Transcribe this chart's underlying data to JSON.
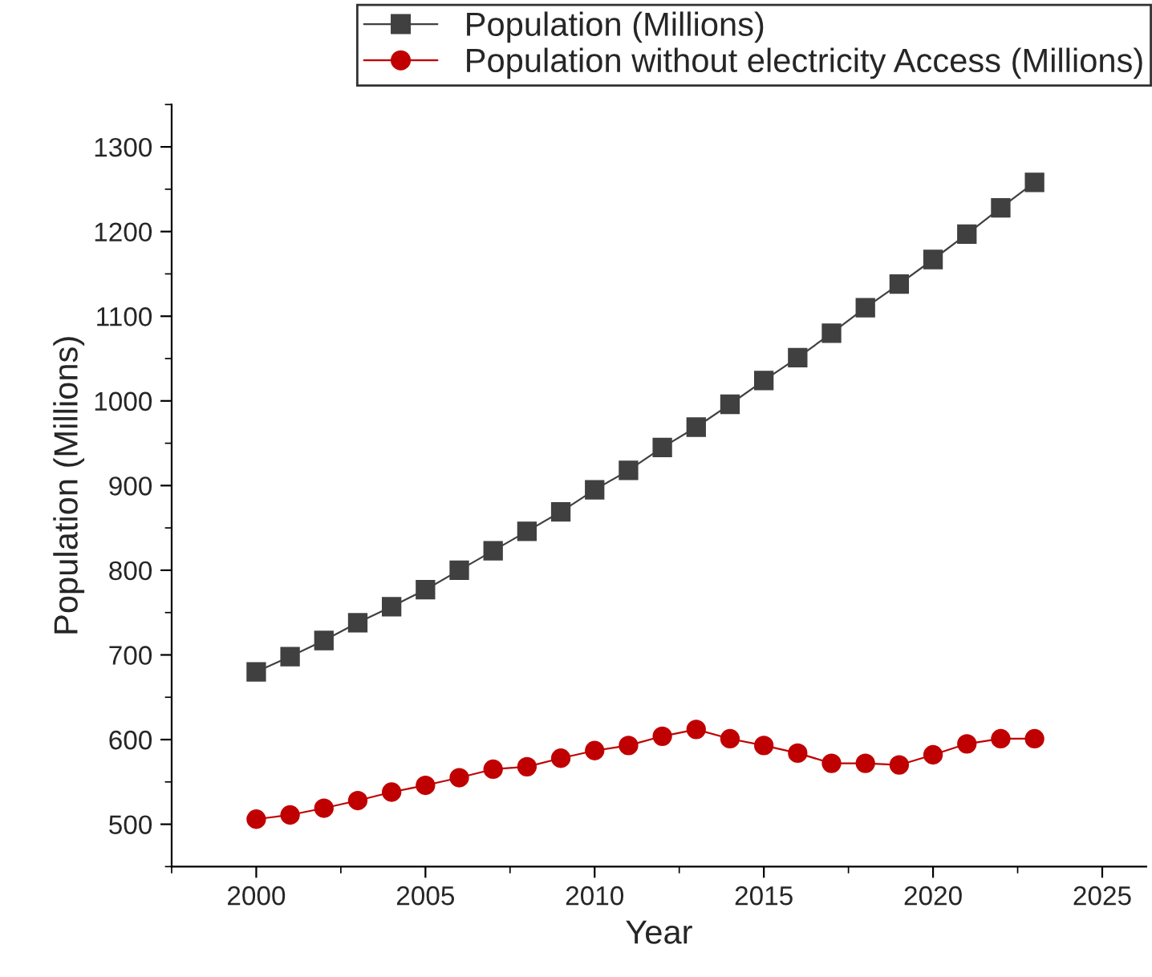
{
  "chart_data": {
    "type": "line",
    "xlabel": "Year",
    "ylabel": "Population (Millions)",
    "x": [
      2000,
      2001,
      2002,
      2003,
      2004,
      2005,
      2006,
      2007,
      2008,
      2009,
      2010,
      2011,
      2012,
      2013,
      2014,
      2015,
      2016,
      2017,
      2018,
      2019,
      2020,
      2021,
      2022,
      2023
    ],
    "series": [
      {
        "name": "Population (Millions)",
        "color": "#404040",
        "marker": "square",
        "values": [
          680,
          698,
          717,
          738,
          757,
          777,
          800,
          823,
          846,
          869,
          895,
          918,
          945,
          969,
          996,
          1024,
          1051,
          1080,
          1110,
          1138,
          1167,
          1197,
          1228,
          1258
        ]
      },
      {
        "name": "Population without electricity Access (Millions)",
        "color": "#c00000",
        "marker": "circle",
        "values": [
          506,
          511,
          519,
          528,
          538,
          546,
          555,
          565,
          568,
          578,
          587,
          593,
          604,
          612,
          601,
          593,
          584,
          572,
          572,
          570,
          582,
          595,
          601,
          601
        ]
      }
    ],
    "xlim": [
      1997.5,
      2026.3
    ],
    "xticks": [
      2000,
      2005,
      2010,
      2015,
      2020,
      2025
    ],
    "ylim": [
      450,
      1350
    ],
    "yticks": [
      500,
      600,
      700,
      800,
      900,
      1000,
      1100,
      1200,
      1300
    ],
    "grid": false,
    "legend": "top right",
    "line_style": "solid"
  }
}
